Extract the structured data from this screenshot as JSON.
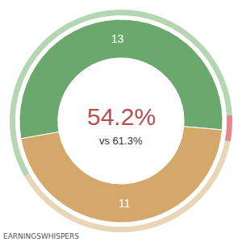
{
  "chart_data": {
    "type": "pie",
    "values": [
      13,
      11
    ],
    "colors": [
      "#6aa86e",
      "#d4a76a"
    ],
    "data_labels": true,
    "annotations": [
      "54.2%",
      "vs 61.3%"
    ],
    "outer_ring": {
      "values": [
        57.5,
        3.8,
        38.7
      ],
      "colors": [
        "#b5d6b2",
        "#e6888b",
        "#e8d6b6"
      ]
    },
    "source": "EARNINGSWHISPERS"
  }
}
